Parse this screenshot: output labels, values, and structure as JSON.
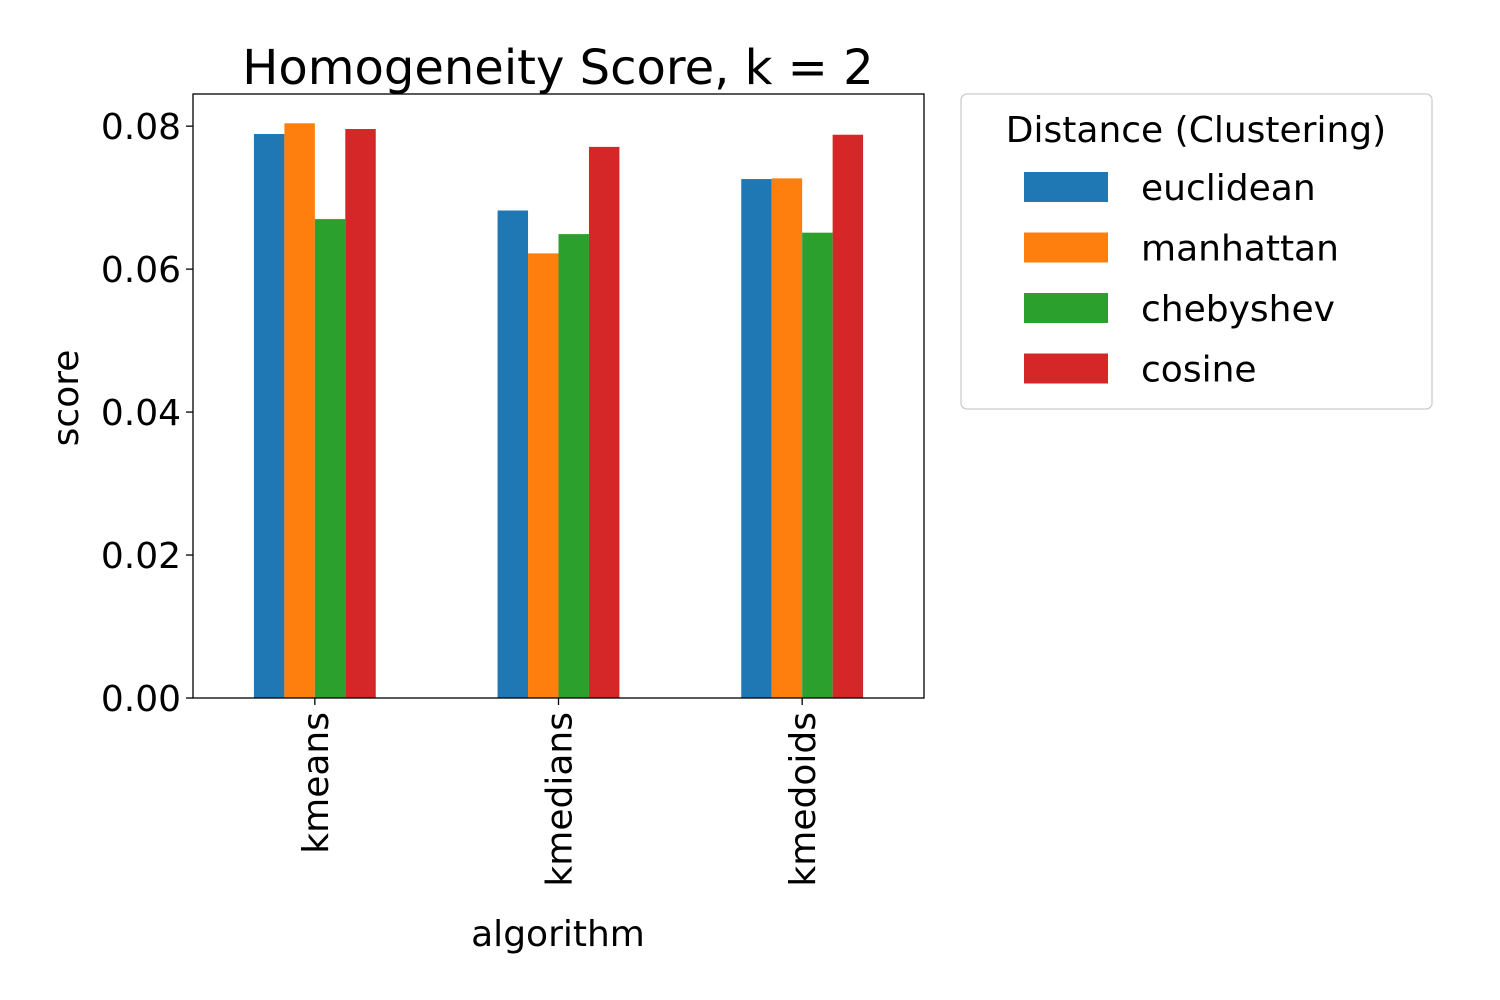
{
  "chart_data": {
    "type": "bar",
    "title": "Homogeneity Score, k = 2",
    "xlabel": "algorithm",
    "ylabel": "score",
    "categories": [
      "kmeans",
      "kmedians",
      "kmedoids"
    ],
    "ylim": [
      0,
      0.0845
    ],
    "yticks": [
      0.0,
      0.02,
      0.04,
      0.06,
      0.08
    ],
    "ytick_labels": [
      "0.00",
      "0.02",
      "0.04",
      "0.06",
      "0.08"
    ],
    "grid": false,
    "legend": {
      "title": "Distance (Clustering)",
      "placement": "outside upper right"
    },
    "series": [
      {
        "name": "euclidean",
        "color": "#1f77b4",
        "values": [
          0.0789,
          0.0682,
          0.0726
        ]
      },
      {
        "name": "manhattan",
        "color": "#ff7f0e",
        "values": [
          0.0804,
          0.0622,
          0.0727
        ]
      },
      {
        "name": "chebyshev",
        "color": "#2ca02c",
        "values": [
          0.067,
          0.0649,
          0.0651
        ]
      },
      {
        "name": "cosine",
        "color": "#d62728",
        "values": [
          0.0796,
          0.0771,
          0.0788
        ]
      }
    ]
  }
}
